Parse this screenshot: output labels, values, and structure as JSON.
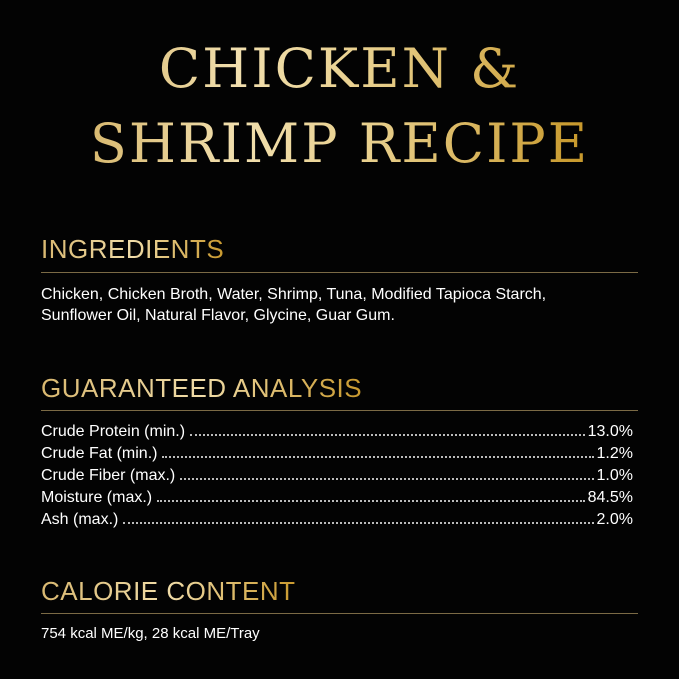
{
  "title": {
    "line1": "CHICKEN &",
    "line2": "SHRIMP RECIPE"
  },
  "ingredients": {
    "heading": "INGREDIENTS",
    "line1": "Chicken, Chicken Broth, Water, Shrimp, Tuna, Modified Tapioca Starch,",
    "line2": "Sunflower Oil, Natural Flavor, Glycine, Guar Gum."
  },
  "analysis": {
    "heading": "GUARANTEED ANALYSIS",
    "rows": [
      {
        "label": "Crude Protein (min.)",
        "value": "13.0%"
      },
      {
        "label": "Crude Fat (min.)",
        "value": "1.2%"
      },
      {
        "label": "Crude Fiber (max.)",
        "value": "1.0%"
      },
      {
        "label": "Moisture (max.)",
        "value": "84.5%"
      },
      {
        "label": "Ash (max.)",
        "value": "2.0%"
      }
    ]
  },
  "calorie": {
    "heading": "CALORIE CONTENT",
    "text": "754 kcal ME/kg, 28 kcal ME/Tray"
  },
  "colors": {
    "background": "#030303",
    "gold": "#d9b870",
    "rule": "#7b6a45"
  }
}
